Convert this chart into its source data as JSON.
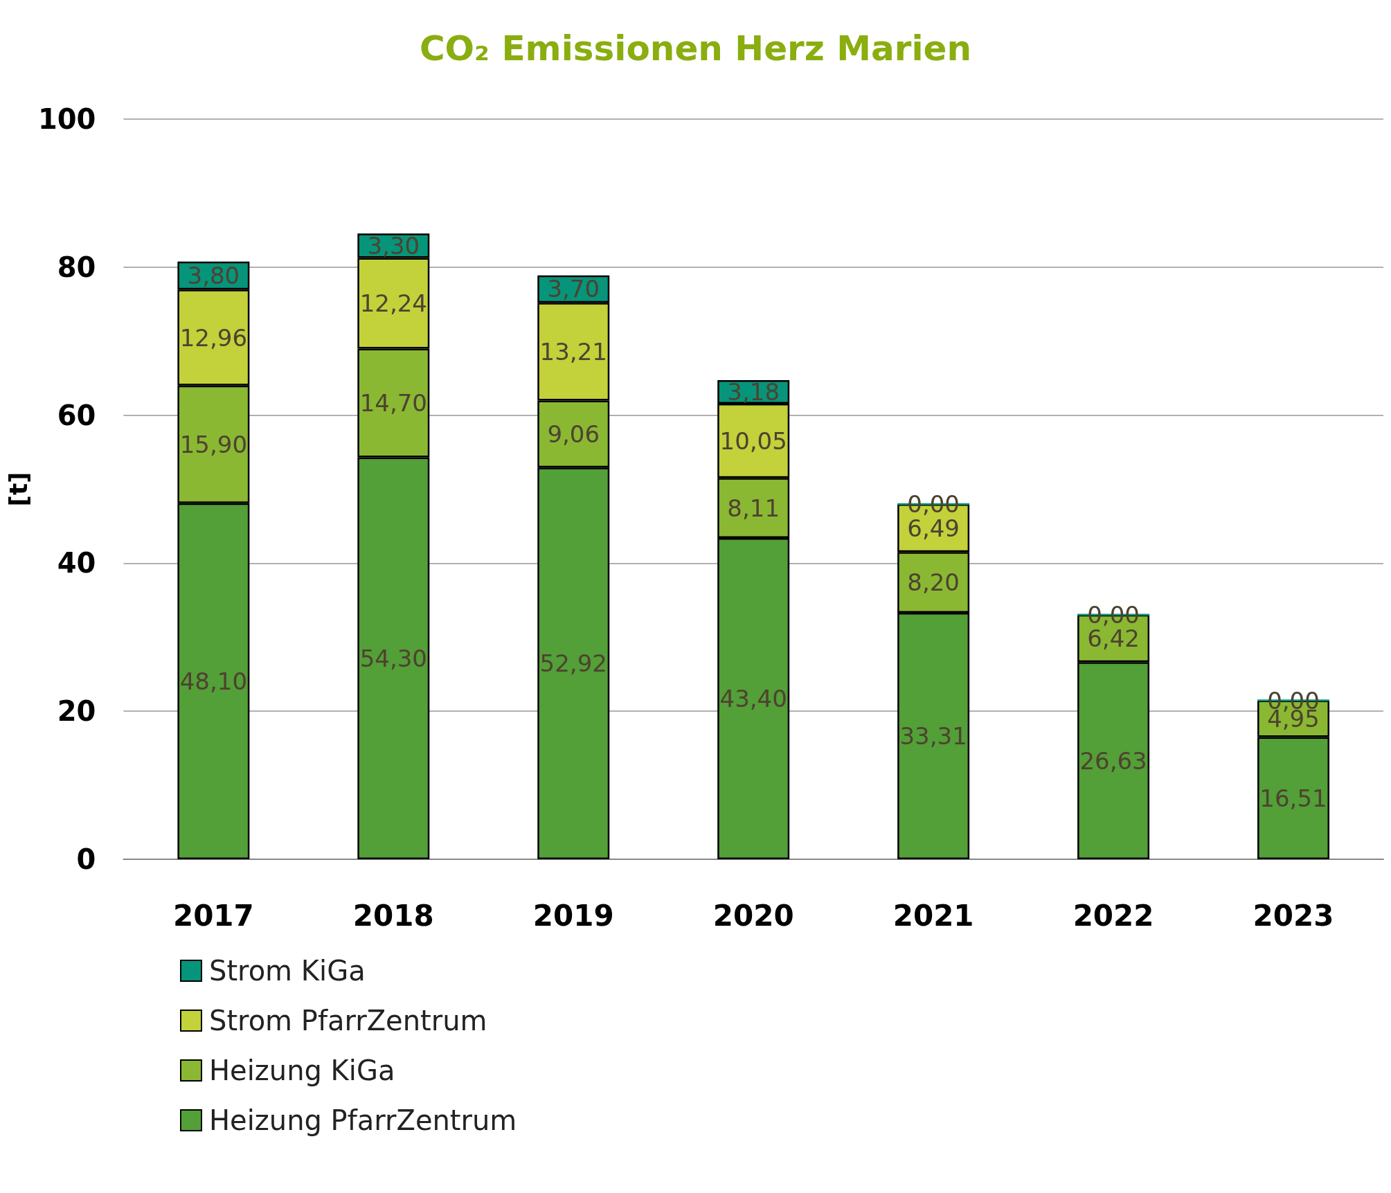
{
  "chart_data": {
    "type": "bar",
    "title": "CO₂ Emissionen Herz Marien",
    "ylabel": "[t]",
    "categories": [
      "2017",
      "2018",
      "2019",
      "2020",
      "2021",
      "2022",
      "2023"
    ],
    "stacked": true,
    "ylim": [
      0,
      100
    ],
    "yticks": [
      0,
      20,
      40,
      60,
      80,
      100
    ],
    "grid": "y",
    "legend": "bottom left",
    "series": [
      {
        "name": "Heizung PfarrZentrum",
        "color": "#539f38",
        "values": [
          48.1,
          54.3,
          52.92,
          43.4,
          33.31,
          26.63,
          16.51
        ],
        "value_labels": [
          "48,10",
          "54,30",
          "52,92",
          "43,40",
          "33,31",
          "26,63",
          "16,51"
        ]
      },
      {
        "name": "Heizung KiGa",
        "color": "#8ab833",
        "values": [
          15.9,
          14.7,
          9.06,
          8.11,
          8.2,
          6.42,
          4.95
        ],
        "value_labels": [
          "15,90",
          "14,70",
          "9,06",
          "8,11",
          "8,20",
          "6,42",
          "4,95"
        ]
      },
      {
        "name": "Strom PfarrZentrum",
        "color": "#c3d13a",
        "values": [
          12.96,
          12.24,
          13.21,
          10.05,
          6.49,
          null,
          null
        ],
        "value_labels": [
          "12,96",
          "12,24",
          "13,21",
          "10,05",
          "6,49",
          null,
          null
        ]
      },
      {
        "name": "Strom KiGa",
        "color": "#06957a",
        "values": [
          3.8,
          3.3,
          3.7,
          3.18,
          0.0,
          0.0,
          0.0
        ],
        "value_labels": [
          "3,80",
          "3,30",
          "3,70",
          "3,18",
          "0,00",
          "0,00",
          "0,00"
        ]
      }
    ]
  }
}
